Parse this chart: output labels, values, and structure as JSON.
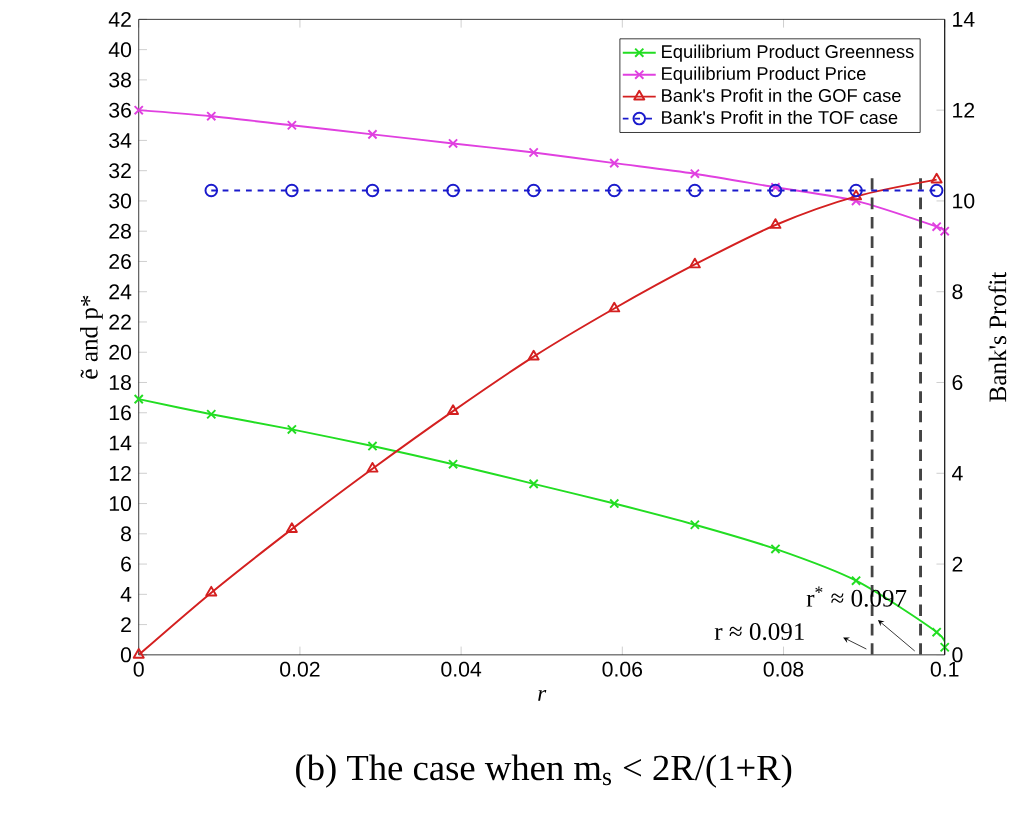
{
  "chart_data": {
    "type": "line",
    "title": "(b) The case when m$_{s}$ < 2R/(1+R)",
    "xlabel": "r",
    "ylabel": "ẽ and p*",
    "y2label": "Bank's Profit",
    "xlim": [
      0,
      0.1
    ],
    "xticks": [
      0,
      0.02,
      0.04,
      0.06,
      0.08,
      0.1
    ],
    "ylim": [
      0,
      42
    ],
    "yticks": [
      0,
      2,
      4,
      6,
      8,
      10,
      12,
      14,
      16,
      18,
      20,
      22,
      24,
      26,
      28,
      30,
      32,
      34,
      36,
      38,
      40,
      42
    ],
    "y2lim": [
      0,
      14
    ],
    "y2ticks": [
      0,
      2,
      4,
      6,
      8,
      10,
      12,
      14
    ],
    "legend": "top right",
    "series": [
      {
        "name": "Equilibrium Product Greenness",
        "color": "#22dd22",
        "marker": "cross",
        "line_style": "solid",
        "x": [
          0,
          0.009,
          0.019,
          0.029,
          0.039,
          0.049,
          0.059,
          0.069,
          0.079,
          0.089,
          0.099,
          0.1
        ],
        "values": [
          16.9,
          15.9,
          14.9,
          13.8,
          12.6,
          11.3,
          10.0,
          8.6,
          7.0,
          4.9,
          1.5,
          0.5
        ]
      },
      {
        "name": "Equilibrium Product Price",
        "color": "#e040e0",
        "marker": "cross",
        "line_style": "solid",
        "x": [
          0,
          0.009,
          0.019,
          0.029,
          0.039,
          0.049,
          0.059,
          0.069,
          0.079,
          0.089,
          0.099,
          0.1
        ],
        "values": [
          36.0,
          35.6,
          35.0,
          34.4,
          33.8,
          33.2,
          32.5,
          31.8,
          30.9,
          30.0,
          28.3,
          28.0
        ]
      },
      {
        "name": "Bank's Profit in the GOF case",
        "color": "#d42020",
        "marker": "triangle",
        "line_style": "solid",
        "axis": "y2",
        "x": [
          0,
          0.009,
          0.019,
          0.029,
          0.039,
          0.049,
          0.059,
          0.069,
          0.079,
          0.089,
          0.099
        ],
        "values": [
          0,
          1.37,
          2.77,
          4.1,
          5.37,
          6.57,
          7.63,
          8.6,
          9.47,
          10.1,
          10.47
        ]
      },
      {
        "name": "Bank's Profit in the TOF case",
        "color": "#1a1acc",
        "marker": "circle",
        "line_style": "dashed",
        "axis": "y2",
        "x": [
          0.009,
          0.019,
          0.029,
          0.039,
          0.049,
          0.059,
          0.069,
          0.079,
          0.089,
          0.099
        ],
        "values": [
          10.23,
          10.23,
          10.23,
          10.23,
          10.23,
          10.23,
          10.23,
          10.23,
          10.23,
          10.23
        ]
      }
    ],
    "ref_lines": [
      {
        "axis": "x",
        "value": 0.091,
        "color": "#444444",
        "line_style": "dashed"
      },
      {
        "axis": "x",
        "value": 0.097,
        "color": "#444444",
        "line_style": "dashed"
      }
    ],
    "annotations": [
      {
        "text": "r ≈ 0.091",
        "x": 0.091,
        "y": 0
      },
      {
        "text": "r$^{*}$ ≈ 0.097",
        "x": 0.097,
        "y": 0
      }
    ]
  }
}
